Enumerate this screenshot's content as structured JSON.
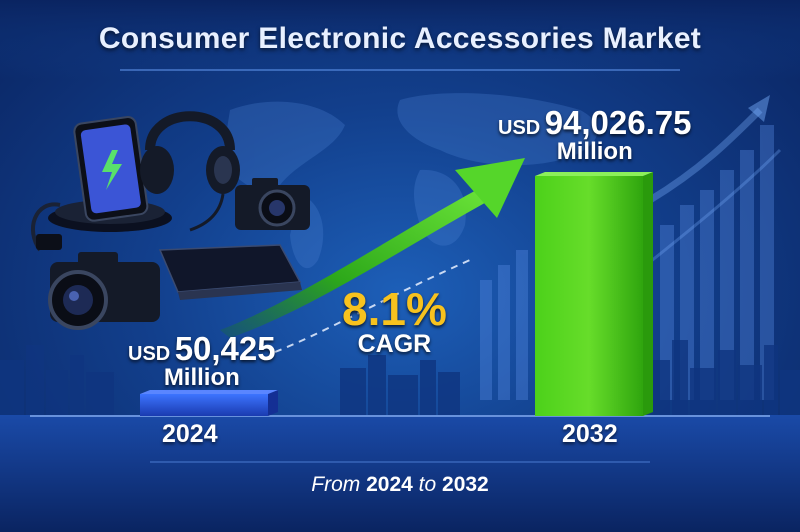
{
  "chart_data": {
    "type": "bar",
    "title": "Consumer Electronic Accessories Market",
    "categories": [
      "2024",
      "2032"
    ],
    "values": [
      50425,
      94026.75
    ],
    "unit": "USD Million",
    "value_labels": [
      {
        "currency": "USD",
        "amount": "50,425",
        "unit": "Million"
      },
      {
        "currency": "USD",
        "amount": "94,026.75",
        "unit": "Million"
      }
    ],
    "cagr": {
      "value": "8.1%",
      "label": "CAGR"
    },
    "grid": false,
    "legend": "none"
  },
  "footer": {
    "from": "From",
    "start": "2024",
    "to": "to",
    "end": "2032"
  },
  "colors": {
    "bar_2024": "#1f4fd1",
    "bar_2032": "#5ad11f",
    "cagr_text": "#f7c21e",
    "background": "#123f8c"
  },
  "icons": [
    "wireless-charger-phone-icon",
    "headphones-icon",
    "camera-icon",
    "dslr-camera-icon",
    "laptop-icon",
    "growth-arrow-icon"
  ]
}
